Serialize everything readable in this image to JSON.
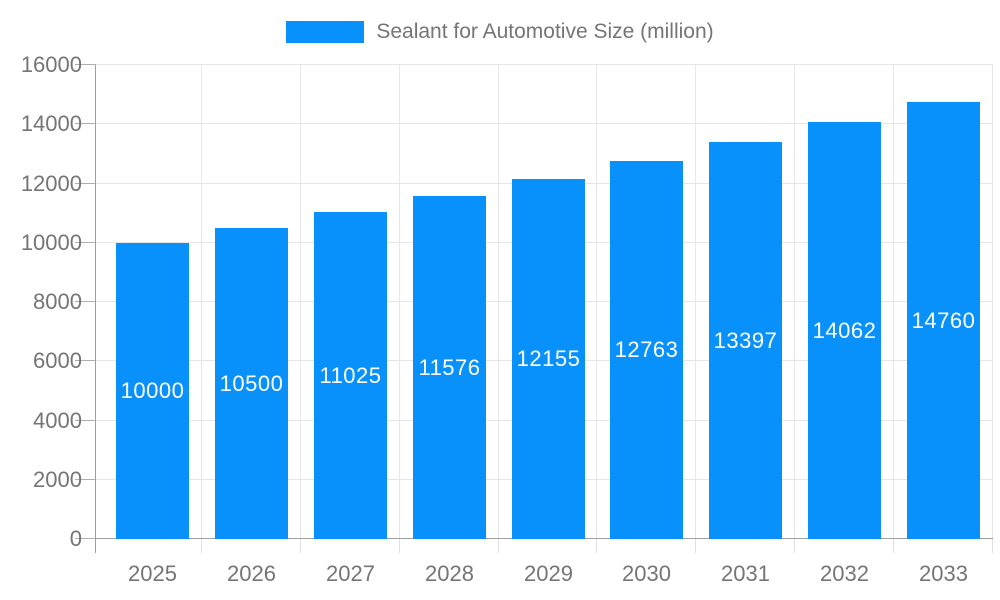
{
  "chart_data": {
    "type": "bar",
    "title": "Sealant for Automotive Size (million)",
    "legend": [
      "Sealant for Automotive Size (million)"
    ],
    "legend_position": "top",
    "categories": [
      "2025",
      "2026",
      "2027",
      "2028",
      "2029",
      "2030",
      "2031",
      "2032",
      "2033"
    ],
    "values": [
      10000,
      10500,
      11025,
      11576,
      12155,
      12763,
      13397,
      14062,
      14760
    ],
    "bar_value_labels": [
      "10000",
      "10500",
      "11025",
      "11576",
      "12155",
      "12763",
      "13397",
      "14062",
      "14760"
    ],
    "xlabel": "",
    "ylabel": "",
    "ylim": [
      0,
      16000
    ],
    "ytick_step": 2000,
    "y_tick_labels": [
      "0",
      "2000",
      "4000",
      "6000",
      "8000",
      "10000",
      "12000",
      "14000",
      "16000"
    ],
    "grid": true,
    "colors": {
      "bar": "#0991fb",
      "bar_label_text": "#ffffff",
      "axis_text": "#757575",
      "grid_line": "#e6e6e6",
      "axis_line": "#9e9e9e",
      "y_tick": "#b0b0b0",
      "x_tick": "#e0e0e0",
      "background": "#ffffff"
    }
  }
}
